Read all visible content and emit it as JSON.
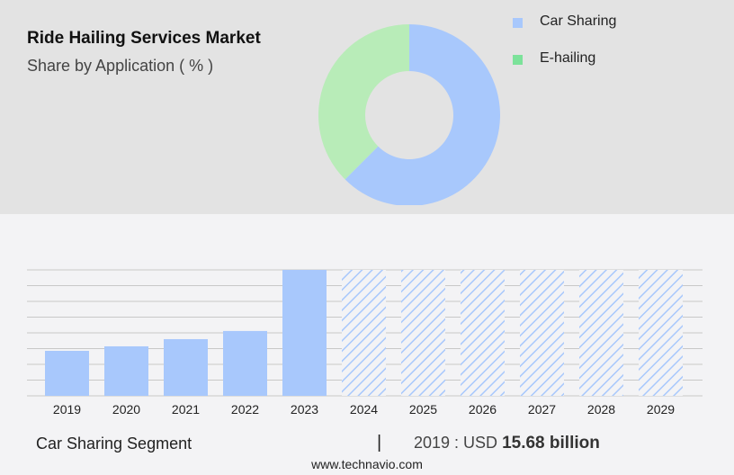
{
  "header": {
    "title": "Ride Hailing Services Market",
    "subtitle": "Share by Application ( % )"
  },
  "colors": {
    "car_sharing": "#a8c8fc",
    "e_hailing": "#b8ecb8",
    "e_hailing_legend": "#7ce29a",
    "top_bg": "#e3e3e3",
    "bottom_bg": "#f3f3f5",
    "grid": "#c8c8c8"
  },
  "chart_data": [
    {
      "type": "pie",
      "variant": "donut",
      "legend": "right",
      "slices": [
        {
          "name": "Car Sharing",
          "value": 62.5
        },
        {
          "name": "E-hailing",
          "value": 37.5
        }
      ]
    },
    {
      "type": "bar",
      "categories": [
        "2019",
        "2020",
        "2021",
        "2022",
        "2023",
        "2024",
        "2025",
        "2026",
        "2027",
        "2028",
        "2029"
      ],
      "values": [
        15.68,
        17.25,
        19.76,
        22.6,
        43.9,
        43.9,
        43.9,
        43.9,
        43.9,
        43.9,
        43.9
      ],
      "forecast_from": "2024",
      "forecast_style": "hatched",
      "grid": true,
      "ylim": [
        0,
        43.9
      ]
    }
  ],
  "footer": {
    "segment": "Car Sharing Segment",
    "separator": "|",
    "year_prefix": "2019 : USD",
    "value": "15.68 billion",
    "site": "www.technavio.com"
  }
}
